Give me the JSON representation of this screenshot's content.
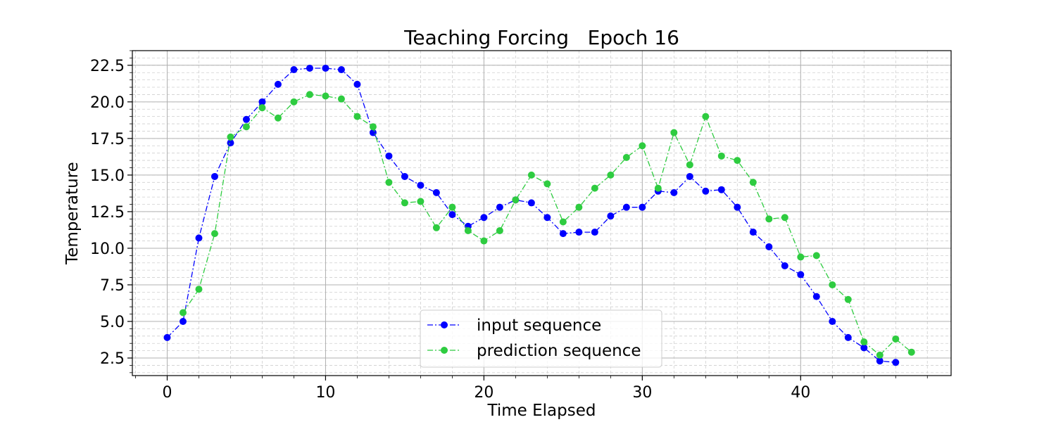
{
  "chart_data": {
    "type": "line",
    "title": "Teaching Forcing   Epoch 16",
    "xlabel": "Time Elapsed",
    "ylabel": "Temperature",
    "xlim": [
      -2.2,
      49.5
    ],
    "ylim": [
      1.3,
      23.5
    ],
    "x_ticks": [
      0,
      10,
      20,
      30,
      40
    ],
    "y_ticks": [
      2.5,
      5.0,
      7.5,
      10.0,
      12.5,
      15.0,
      17.5,
      20.0,
      22.5
    ],
    "x_tick_labels": [
      "0",
      "10",
      "20",
      "30",
      "40"
    ],
    "y_tick_labels": [
      "2.5",
      "5.0",
      "7.5",
      "10.0",
      "12.5",
      "15.0",
      "17.5",
      "20.0",
      "22.5"
    ],
    "x_minor_step": 2,
    "y_minor_step": 0.5,
    "grid": true,
    "minor_grid": true,
    "legend": "lower center",
    "series": [
      {
        "name": "input sequence",
        "color": "#0000ff",
        "line_style": "dash-dot",
        "marker": "circle",
        "x": [
          0,
          1,
          2,
          3,
          4,
          5,
          6,
          7,
          8,
          9,
          10,
          11,
          12,
          13,
          14,
          15,
          16,
          17,
          18,
          19,
          20,
          21,
          22,
          23,
          24,
          25,
          26,
          27,
          28,
          29,
          30,
          31,
          32,
          33,
          34,
          35,
          36,
          37,
          38,
          39,
          40,
          41,
          42,
          43,
          44,
          45,
          46
        ],
        "values": [
          3.9,
          5.0,
          10.7,
          14.9,
          17.2,
          18.8,
          20.0,
          21.2,
          22.2,
          22.3,
          22.3,
          22.2,
          21.2,
          17.9,
          16.3,
          14.9,
          14.3,
          13.8,
          12.3,
          11.5,
          12.1,
          12.8,
          13.3,
          13.1,
          12.1,
          11.0,
          11.1,
          11.1,
          12.2,
          12.8,
          12.8,
          13.9,
          13.8,
          14.9,
          13.9,
          14.0,
          12.8,
          11.1,
          10.1,
          8.8,
          8.2,
          6.7,
          5.0,
          3.9,
          3.2,
          2.3,
          2.2
        ]
      },
      {
        "name": "prediction sequence",
        "color": "#2ecc40",
        "line_style": "dash-dot",
        "marker": "circle",
        "x": [
          1,
          2,
          3,
          4,
          5,
          6,
          7,
          8,
          9,
          10,
          11,
          12,
          13,
          14,
          15,
          16,
          17,
          18,
          19,
          20,
          21,
          22,
          23,
          24,
          25,
          26,
          27,
          28,
          29,
          30,
          31,
          32,
          33,
          34,
          35,
          36,
          37,
          38,
          39,
          40,
          41,
          42,
          43,
          44,
          45,
          46,
          47
        ],
        "values": [
          5.6,
          7.2,
          11.0,
          17.6,
          18.3,
          19.6,
          18.9,
          20.0,
          20.5,
          20.4,
          20.2,
          19.0,
          18.3,
          14.5,
          13.1,
          13.2,
          11.4,
          12.8,
          11.2,
          10.5,
          11.2,
          13.3,
          15.0,
          14.4,
          11.8,
          12.8,
          14.1,
          15.0,
          16.2,
          17.0,
          14.1,
          17.9,
          15.7,
          19.0,
          16.3,
          16.0,
          14.5,
          12.0,
          12.1,
          9.4,
          9.5,
          7.5,
          6.5,
          3.6,
          2.7,
          3.8,
          2.9
        ]
      }
    ]
  }
}
